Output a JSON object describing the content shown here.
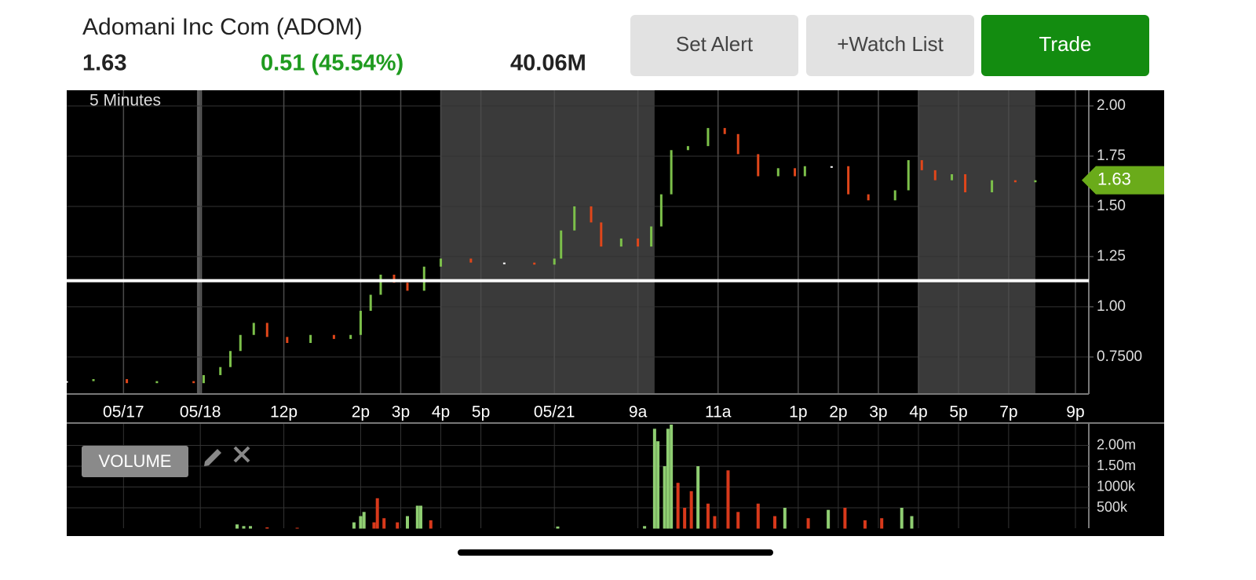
{
  "header": {
    "title": "Adomani Inc Com (ADOM)",
    "price": "1.63",
    "change": "0.51 (45.54%)",
    "volume": "40.06M"
  },
  "buttons": [
    "Set Alert",
    "+Watch List",
    "Trade"
  ],
  "chart_data": [
    {
      "type": "candlestick",
      "interval": "5 Minutes",
      "x": [
        0,
        8,
        18,
        27,
        38,
        41,
        46,
        49,
        52,
        56,
        60,
        66,
        73,
        80,
        85,
        88,
        91,
        94,
        98,
        102,
        107,
        112,
        121,
        131,
        140,
        146,
        148,
        152,
        157,
        160,
        166,
        171,
        175,
        178,
        181,
        186,
        192,
        197,
        201,
        207,
        213,
        218,
        221,
        229,
        234,
        240,
        248,
        252,
        256,
        260,
        265,
        269,
        277,
        284,
        290
      ],
      "values": [
        0.63,
        0.64,
        0.62,
        0.63,
        0.62,
        0.66,
        0.7,
        0.78,
        0.86,
        0.92,
        0.85,
        0.82,
        0.86,
        0.84,
        0.86,
        0.98,
        1.06,
        1.16,
        1.12,
        1.08,
        1.2,
        1.24,
        1.22,
        1.22,
        1.21,
        1.24,
        1.38,
        1.5,
        1.42,
        1.3,
        1.34,
        1.3,
        1.4,
        1.56,
        1.78,
        1.8,
        1.89,
        1.86,
        1.76,
        1.65,
        1.69,
        1.65,
        1.7,
        1.7,
        1.56,
        1.53,
        1.58,
        1.73,
        1.68,
        1.63,
        1.66,
        1.57,
        1.63,
        1.62,
        1.63
      ],
      "up_color": "#7cc04a",
      "down_color": "#e0461a",
      "xlim": [
        0,
        306
      ],
      "xticks": [
        {
          "value": 17,
          "label": "05/17"
        },
        {
          "value": 40,
          "label": "05/18"
        },
        {
          "value": 65,
          "label": "12p"
        },
        {
          "value": 88,
          "label": "2p"
        },
        {
          "value": 100,
          "label": "3p"
        },
        {
          "value": 112,
          "label": "4p"
        },
        {
          "value": 124,
          "label": "5p"
        },
        {
          "value": 146,
          "label": "05/21"
        },
        {
          "value": 171,
          "label": "9a"
        },
        {
          "value": 195,
          "label": "11a"
        },
        {
          "value": 219,
          "label": "1p"
        },
        {
          "value": 231,
          "label": "2p"
        },
        {
          "value": 243,
          "label": "3p"
        },
        {
          "value": 255,
          "label": "4p"
        },
        {
          "value": 267,
          "label": "5p"
        },
        {
          "value": 282,
          "label": "7p"
        },
        {
          "value": 302,
          "label": "9p"
        }
      ],
      "ylim": [
        0.566,
        2.078
      ],
      "yticks": [
        {
          "value": 0.75,
          "label": "0.7500"
        },
        {
          "value": 1,
          "label": "1.00"
        },
        {
          "value": 1.25,
          "label": "1.25"
        },
        {
          "value": 1.5,
          "label": "1.50"
        },
        {
          "value": 1.75,
          "label": "1.75"
        },
        {
          "value": 2,
          "label": "2.00"
        }
      ],
      "shaded_ranges": [
        [
          39,
          40.5
        ],
        [
          112,
          176
        ],
        [
          255,
          290
        ]
      ],
      "reference_line": 1.13,
      "grid": true
    },
    {
      "type": "bar",
      "label": "VOLUME",
      "x": [
        51,
        53,
        55,
        60,
        69,
        86,
        88,
        89,
        92,
        93,
        95,
        99,
        102,
        105,
        106,
        109,
        147,
        173,
        176,
        177,
        179,
        180,
        181,
        183,
        185,
        187,
        189,
        192,
        194,
        198,
        201,
        207,
        212,
        215,
        222,
        228,
        233,
        239,
        244,
        250,
        253
      ],
      "values": [
        100000,
        60000,
        60000,
        30000,
        20000,
        150000,
        300000,
        400000,
        150000,
        730000,
        250000,
        150000,
        300000,
        550000,
        550000,
        200000,
        50000,
        60000,
        2400000,
        2100000,
        1500000,
        2400000,
        2500000,
        1100000,
        500000,
        900000,
        1500000,
        600000,
        300000,
        1400000,
        400000,
        600000,
        300000,
        500000,
        250000,
        450000,
        500000,
        200000,
        250000,
        500000,
        300000
      ],
      "colors": [
        "#8fce72",
        "#8fce72",
        "#8fce72",
        "#d8391b",
        "#d8391b",
        "#8fce72",
        "#8fce72",
        "#8fce72",
        "#d8391b",
        "#d8391b",
        "#d8391b",
        "#d8391b",
        "#8fce72",
        "#8fce72",
        "#8fce72",
        "#d8391b",
        "#8fce72",
        "#8fce72",
        "#8fce72",
        "#8fce72",
        "#8fce72",
        "#8fce72",
        "#8fce72",
        "#d8391b",
        "#d8391b",
        "#d8391b",
        "#8fce72",
        "#d8391b",
        "#d8391b",
        "#d8391b",
        "#d8391b",
        "#d8391b",
        "#d8391b",
        "#8fce72",
        "#d8391b",
        "#8fce72",
        "#d8391b",
        "#d8391b",
        "#d8391b",
        "#8fce72",
        "#8fce72"
      ],
      "xlim": [
        0,
        306
      ],
      "ylim": [
        0,
        2500000
      ],
      "yticks": [
        {
          "value": 500000,
          "label": "500k"
        },
        {
          "value": 1000000,
          "label": "1000k"
        },
        {
          "value": 1500000,
          "label": "1.50m"
        },
        {
          "value": 2000000,
          "label": "2.00m"
        }
      ],
      "grid": true
    }
  ]
}
